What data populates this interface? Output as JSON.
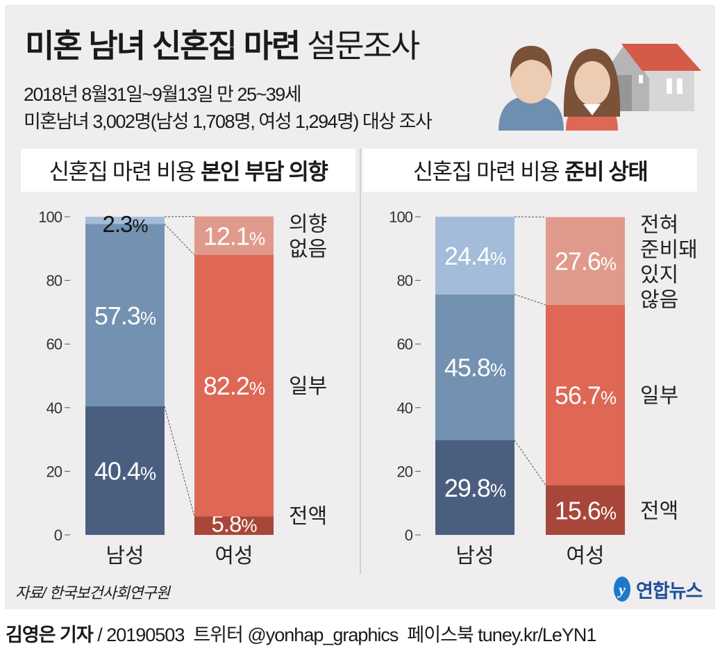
{
  "header": {
    "title_bold": "미혼 남녀 신혼집 마련",
    "title_light": "설문조사",
    "subtitle_1": "2018년 8월31일~9월13일 만 25~39세",
    "subtitle_2": "미혼남녀 3,002명(남성 1,708명, 여성 1,294명) 대상 조사"
  },
  "colors": {
    "background": "#efedee",
    "male": [
      "#4a5f80",
      "#7391b1",
      "#a3bcd9"
    ],
    "female": [
      "#a84739",
      "#de6756",
      "#e09a8b"
    ]
  },
  "chart_data": [
    {
      "type": "bar",
      "stacked": true,
      "title_regular": "신혼집 마련 비용",
      "title_bold": "본인 부담 의향",
      "categories": [
        "남성",
        "여성"
      ],
      "ylim": [
        0,
        100
      ],
      "yticks": [
        "0",
        "20",
        "40",
        "60",
        "80",
        "100"
      ],
      "series": [
        {
          "name": "전액",
          "values": [
            40.4,
            5.8
          ],
          "labels": [
            "40.4",
            "5.8"
          ]
        },
        {
          "name": "일부",
          "values": [
            57.3,
            82.2
          ],
          "labels": [
            "57.3",
            "82.2"
          ]
        },
        {
          "name": "의향 없음",
          "values": [
            2.3,
            12.1
          ],
          "labels": [
            "2.3",
            "12.1"
          ]
        }
      ],
      "legend_labels": [
        [
          "전액"
        ],
        [
          "일부"
        ],
        [
          "의향",
          "없음"
        ]
      ]
    },
    {
      "type": "bar",
      "stacked": true,
      "title_regular": "신혼집 마련 비용",
      "title_bold": "준비 상태",
      "categories": [
        "남성",
        "여성"
      ],
      "ylim": [
        0,
        100
      ],
      "yticks": [
        "0",
        "20",
        "40",
        "60",
        "80",
        "100"
      ],
      "series": [
        {
          "name": "전액",
          "values": [
            29.8,
            15.6
          ],
          "labels": [
            "29.8",
            "15.6"
          ]
        },
        {
          "name": "일부",
          "values": [
            45.8,
            56.7
          ],
          "labels": [
            "45.8",
            "56.7"
          ]
        },
        {
          "name": "전혀 준비돼 있지 않음",
          "values": [
            24.4,
            27.6
          ],
          "labels": [
            "24.4",
            "27.6"
          ]
        }
      ],
      "legend_labels": [
        [
          "전액"
        ],
        [
          "일부"
        ],
        [
          "전혀",
          "준비돼",
          "있지",
          "않음"
        ]
      ]
    }
  ],
  "percent_sign": "%",
  "source": "자료/ 한국보건사회연구원",
  "logo": "연합뉴스",
  "footer": {
    "author": "김영은 기자",
    "rest": " / 20190503  트위터 @yonhap_graphics  페이스북 tuney.kr/LeYN1"
  }
}
